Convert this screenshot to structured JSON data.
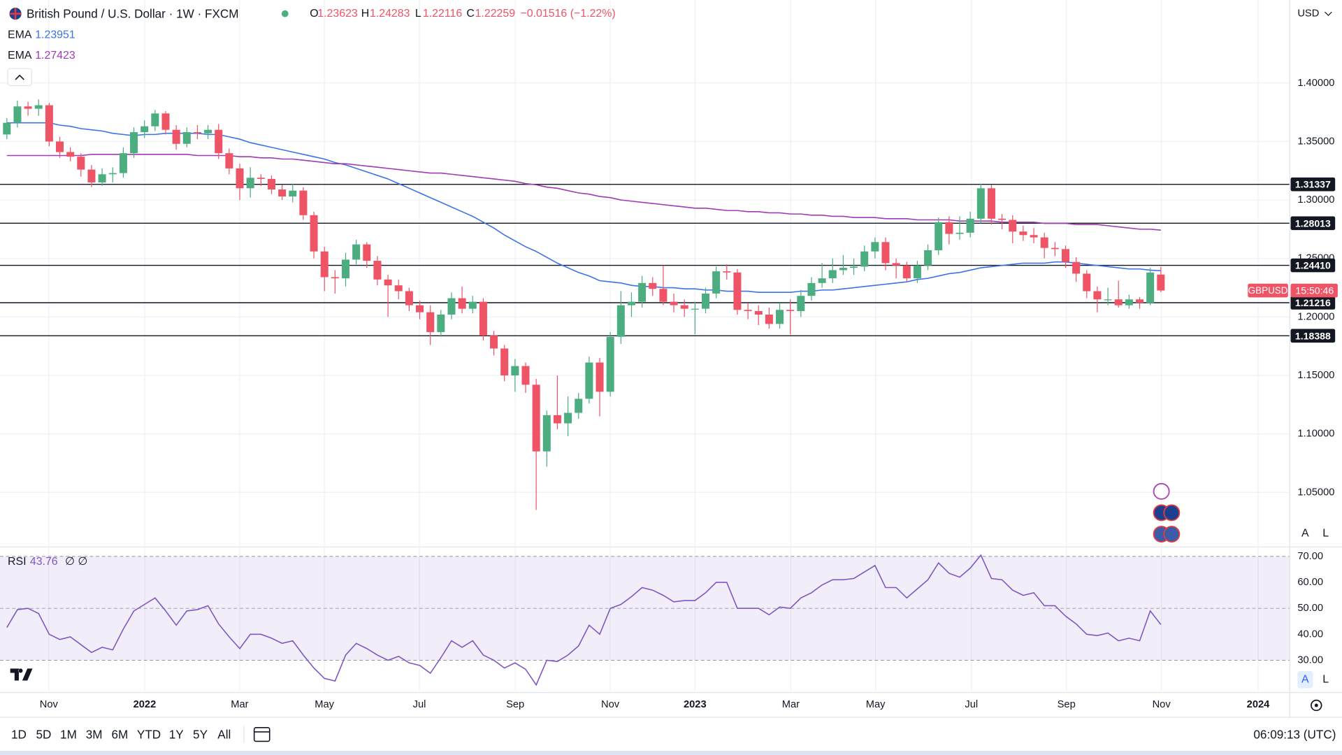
{
  "header": {
    "ohlc_letters": [
      "O",
      "H",
      "L",
      "C"
    ],
    "change": "−0.01516 (−1.22%)",
    "currency": "USD",
    "scale_buttons": [
      "A",
      "L"
    ]
  },
  "chart_data": [
    {
      "type": "candlestick",
      "title": "British Pound / U.S. Dollar · 1W · FXCM",
      "up_color": "#4cae80",
      "down_color": "#ef5366",
      "open": [
        1.356,
        1.366,
        1.38,
        1.378,
        1.381,
        1.35,
        1.341,
        1.337,
        1.326,
        1.315,
        1.322,
        1.323,
        1.34,
        1.358,
        1.363,
        1.374,
        1.36,
        1.348,
        1.358,
        1.357,
        1.36,
        1.34,
        1.327,
        1.31,
        1.319,
        1.318,
        1.309,
        1.303,
        1.308,
        1.287,
        1.256,
        1.234,
        1.233,
        1.249,
        1.262,
        1.248,
        1.232,
        1.227,
        1.222,
        1.21,
        1.204,
        1.187,
        1.202,
        1.216,
        1.207,
        1.213,
        1.184,
        1.173,
        1.15,
        1.158,
        1.142,
        1.085,
        1.116,
        1.109,
        1.118,
        1.13,
        1.161,
        1.136,
        1.183,
        1.21,
        1.213,
        1.229,
        1.224,
        1.213,
        1.21,
        1.207,
        1.207,
        1.22,
        1.239,
        1.238,
        1.206,
        1.205,
        1.202,
        1.194,
        1.206,
        1.205,
        1.218,
        1.229,
        1.233,
        1.24,
        1.242,
        1.243,
        1.256,
        1.264,
        1.246,
        1.244,
        1.233,
        1.244,
        1.257,
        1.281,
        1.271,
        1.272,
        1.284,
        1.31,
        1.284,
        1.283,
        1.273,
        1.27,
        1.268,
        1.259,
        1.258,
        1.247,
        1.237,
        1.222,
        1.215,
        1.215,
        1.21,
        1.215,
        1.212,
        1.23623
      ],
      "high": [
        1.37,
        1.385,
        1.384,
        1.386,
        1.383,
        1.354,
        1.345,
        1.34,
        1.33,
        1.327,
        1.328,
        1.345,
        1.362,
        1.368,
        1.377,
        1.376,
        1.364,
        1.362,
        1.364,
        1.364,
        1.365,
        1.344,
        1.331,
        1.328,
        1.322,
        1.321,
        1.313,
        1.314,
        1.311,
        1.29,
        1.26,
        1.24,
        1.255,
        1.266,
        1.264,
        1.252,
        1.236,
        1.232,
        1.225,
        1.214,
        1.21,
        1.206,
        1.221,
        1.226,
        1.218,
        1.216,
        1.188,
        1.176,
        1.164,
        1.161,
        1.147,
        1.12,
        1.15,
        1.132,
        1.135,
        1.166,
        1.165,
        1.187,
        1.222,
        1.221,
        1.235,
        1.234,
        1.244,
        1.22,
        1.215,
        1.213,
        1.225,
        1.243,
        1.245,
        1.241,
        1.212,
        1.21,
        1.208,
        1.212,
        1.215,
        1.223,
        1.234,
        1.246,
        1.25,
        1.253,
        1.25,
        1.261,
        1.268,
        1.268,
        1.25,
        1.247,
        1.248,
        1.262,
        1.285,
        1.286,
        1.286,
        1.29,
        1.314,
        1.313,
        1.288,
        1.287,
        1.278,
        1.276,
        1.272,
        1.264,
        1.261,
        1.251,
        1.24,
        1.226,
        1.225,
        1.231,
        1.219,
        1.217,
        1.242,
        1.24283
      ],
      "low": [
        1.352,
        1.362,
        1.372,
        1.372,
        1.346,
        1.336,
        1.333,
        1.32,
        1.311,
        1.312,
        1.315,
        1.319,
        1.336,
        1.353,
        1.359,
        1.356,
        1.343,
        1.345,
        1.352,
        1.352,
        1.335,
        1.322,
        1.3,
        1.302,
        1.312,
        1.305,
        1.3,
        1.298,
        1.283,
        1.25,
        1.222,
        1.22,
        1.226,
        1.245,
        1.242,
        1.227,
        1.2,
        1.215,
        1.205,
        1.198,
        1.176,
        1.183,
        1.198,
        1.203,
        1.203,
        1.18,
        1.167,
        1.145,
        1.136,
        1.135,
        1.035,
        1.072,
        1.104,
        1.098,
        1.113,
        1.126,
        1.115,
        1.132,
        1.177,
        1.2,
        1.208,
        1.218,
        1.21,
        1.204,
        1.2,
        1.185,
        1.203,
        1.216,
        1.232,
        1.202,
        1.198,
        1.193,
        1.19,
        1.19,
        1.185,
        1.2,
        1.214,
        1.225,
        1.229,
        1.236,
        1.236,
        1.239,
        1.25,
        1.24,
        1.233,
        1.23,
        1.229,
        1.24,
        1.253,
        1.262,
        1.266,
        1.268,
        1.28,
        1.279,
        1.275,
        1.263,
        1.265,
        1.263,
        1.25,
        1.252,
        1.242,
        1.23,
        1.216,
        1.204,
        1.21,
        1.208,
        1.207,
        1.207,
        1.21,
        1.22116
      ],
      "close": [
        1.366,
        1.38,
        1.378,
        1.381,
        1.35,
        1.341,
        1.337,
        1.326,
        1.315,
        1.322,
        1.323,
        1.34,
        1.358,
        1.363,
        1.374,
        1.36,
        1.348,
        1.358,
        1.357,
        1.36,
        1.34,
        1.327,
        1.31,
        1.319,
        1.318,
        1.309,
        1.303,
        1.308,
        1.287,
        1.256,
        1.234,
        1.233,
        1.249,
        1.262,
        1.248,
        1.232,
        1.227,
        1.222,
        1.21,
        1.204,
        1.187,
        1.202,
        1.216,
        1.207,
        1.213,
        1.184,
        1.173,
        1.15,
        1.158,
        1.142,
        1.085,
        1.116,
        1.109,
        1.118,
        1.13,
        1.161,
        1.136,
        1.183,
        1.21,
        1.213,
        1.229,
        1.224,
        1.213,
        1.21,
        1.207,
        1.207,
        1.22,
        1.239,
        1.238,
        1.206,
        1.205,
        1.202,
        1.194,
        1.206,
        1.205,
        1.218,
        1.229,
        1.233,
        1.24,
        1.242,
        1.243,
        1.256,
        1.264,
        1.246,
        1.244,
        1.233,
        1.244,
        1.257,
        1.281,
        1.271,
        1.272,
        1.284,
        1.31,
        1.284,
        1.283,
        1.273,
        1.27,
        1.268,
        1.259,
        1.258,
        1.247,
        1.237,
        1.222,
        1.215,
        1.215,
        1.21,
        1.215,
        1.212,
        1.238,
        1.22259
      ],
      "series": [
        {
          "name": "EMA",
          "color": "#3b73e6",
          "values": [
            1.366,
            1.366,
            1.366,
            1.366,
            1.366,
            1.364,
            1.363,
            1.361,
            1.36,
            1.359,
            1.357,
            1.356,
            1.355,
            1.356,
            1.356,
            1.357,
            1.357,
            1.357,
            1.357,
            1.356,
            1.356,
            1.354,
            1.352,
            1.349,
            1.347,
            1.345,
            1.343,
            1.341,
            1.339,
            1.337,
            1.335,
            1.332,
            1.33,
            1.327,
            1.324,
            1.321,
            1.318,
            1.314,
            1.31,
            1.306,
            1.302,
            1.298,
            1.294,
            1.29,
            1.286,
            1.281,
            1.276,
            1.27,
            1.265,
            1.26,
            1.256,
            1.251,
            1.246,
            1.242,
            1.238,
            1.235,
            1.231,
            1.23,
            1.229,
            1.227,
            1.226,
            1.226,
            1.225,
            1.225,
            1.224,
            1.224,
            1.223,
            1.223,
            1.222,
            1.222,
            1.222,
            1.221,
            1.221,
            1.221,
            1.221,
            1.222,
            1.222,
            1.223,
            1.223,
            1.224,
            1.225,
            1.226,
            1.227,
            1.228,
            1.229,
            1.23,
            1.232,
            1.233,
            1.235,
            1.237,
            1.238,
            1.24,
            1.242,
            1.243,
            1.244,
            1.245,
            1.246,
            1.246,
            1.246,
            1.247,
            1.247,
            1.246,
            1.245,
            1.244,
            1.243,
            1.242,
            1.241,
            1.241,
            1.24,
            1.23951
          ]
        },
        {
          "name": "EMA",
          "color": "#a13bb4",
          "values": [
            1.338,
            1.338,
            1.338,
            1.338,
            1.338,
            1.338,
            1.338,
            1.338,
            1.339,
            1.339,
            1.339,
            1.339,
            1.339,
            1.339,
            1.339,
            1.339,
            1.339,
            1.339,
            1.338,
            1.338,
            1.338,
            1.338,
            1.337,
            1.337,
            1.336,
            1.336,
            1.335,
            1.335,
            1.334,
            1.333,
            1.332,
            1.331,
            1.331,
            1.33,
            1.329,
            1.328,
            1.327,
            1.326,
            1.325,
            1.324,
            1.323,
            1.323,
            1.322,
            1.321,
            1.32,
            1.319,
            1.318,
            1.317,
            1.316,
            1.314,
            1.313,
            1.311,
            1.31,
            1.308,
            1.306,
            1.305,
            1.303,
            1.302,
            1.3,
            1.299,
            1.298,
            1.297,
            1.296,
            1.295,
            1.294,
            1.293,
            1.293,
            1.292,
            1.291,
            1.291,
            1.29,
            1.29,
            1.289,
            1.289,
            1.288,
            1.288,
            1.287,
            1.287,
            1.286,
            1.286,
            1.285,
            1.285,
            1.285,
            1.284,
            1.284,
            1.284,
            1.283,
            1.283,
            1.283,
            1.283,
            1.282,
            1.282,
            1.282,
            1.282,
            1.281,
            1.281,
            1.281,
            1.281,
            1.28,
            1.28,
            1.28,
            1.279,
            1.279,
            1.279,
            1.278,
            1.277,
            1.276,
            1.275,
            1.275,
            1.27423
          ]
        }
      ],
      "ylim": [
        1.004,
        1.471
      ],
      "yticks": [
        {
          "value": 1.05,
          "label": "1.05000"
        },
        {
          "value": 1.1,
          "label": "1.10000"
        },
        {
          "value": 1.15,
          "label": "1.15000"
        },
        {
          "value": 1.2,
          "label": "1.20000"
        },
        {
          "value": 1.25,
          "label": "1.25000"
        },
        {
          "value": 1.3,
          "label": "1.30000"
        },
        {
          "value": 1.35,
          "label": "1.35000"
        },
        {
          "value": 1.4,
          "label": "1.40000"
        }
      ],
      "hlines": [
        {
          "value": 1.31337,
          "label": "1.31337"
        },
        {
          "value": 1.28013,
          "label": "1.28013"
        },
        {
          "value": 1.2441,
          "label": "1.24410"
        },
        {
          "value": 1.21216,
          "label": "1.21216"
        },
        {
          "value": 1.18388,
          "label": "1.18388"
        }
      ],
      "price_tag": {
        "symbol": "GBPUSD",
        "countdown": "15:50:46"
      },
      "xtick_labels": [
        "Nov",
        "2022",
        "Mar",
        "May",
        "Jul",
        "Sep",
        "Nov",
        "2023",
        "Mar",
        "May",
        "Jul",
        "Sep",
        "Nov",
        "2024"
      ],
      "grid": true
    },
    {
      "type": "line",
      "title": "RSI",
      "params": "∅ ∅",
      "color": "#7e57c2",
      "values": [
        42.6,
        49.5,
        50,
        48,
        40,
        38,
        39,
        36,
        33,
        35,
        34,
        42,
        49,
        51.5,
        54,
        49,
        43.5,
        49,
        49.5,
        51,
        44,
        39,
        34.5,
        40,
        40,
        38.5,
        36.5,
        37.5,
        32,
        27,
        23,
        22,
        32,
        36.5,
        34.5,
        32,
        30,
        31.5,
        29,
        28,
        25,
        31,
        37.5,
        35,
        37.5,
        32,
        30,
        27,
        29,
        26.5,
        20.5,
        30,
        29.5,
        32,
        35.5,
        43.5,
        40,
        50,
        51.5,
        54.5,
        58,
        57,
        55,
        52.5,
        53,
        53,
        56,
        60,
        60,
        50,
        50,
        50,
        47.5,
        50.5,
        50,
        54,
        56,
        59,
        61,
        61,
        61.5,
        64,
        66.5,
        58,
        58,
        54,
        57.5,
        61,
        67.5,
        63.5,
        62,
        65.5,
        70.5,
        61.5,
        61,
        57,
        55,
        56,
        51,
        51,
        47,
        44,
        40,
        39.5,
        40.5,
        37.5,
        38.5,
        37.5,
        49,
        43.76
      ],
      "ylim": [
        17.9,
        73.3
      ],
      "yticks": [
        {
          "value": 30,
          "label": "30.00"
        },
        {
          "value": 40,
          "label": "40.00"
        },
        {
          "value": 50,
          "label": "50.00"
        },
        {
          "value": 60,
          "label": "60.00"
        },
        {
          "value": 70,
          "label": "70.00"
        }
      ],
      "bands": {
        "upper": 70,
        "middle": 50,
        "lower": 30
      }
    }
  ],
  "toolbar": {
    "ranges": [
      "1D",
      "5D",
      "1M",
      "3M",
      "6M",
      "YTD",
      "1Y",
      "5Y",
      "All"
    ],
    "time": "06:09:13 (UTC)"
  }
}
